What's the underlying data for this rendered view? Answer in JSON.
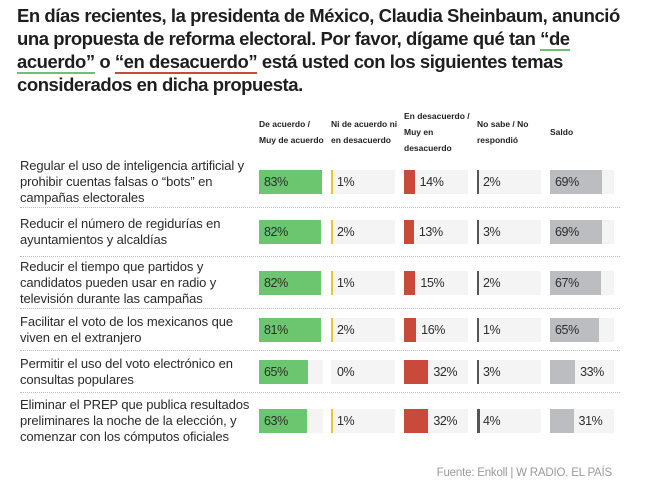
{
  "title": {
    "part1": "En días recientes, la presidenta de México, Claudia Sheinbaum, anunció una propuesta de reforma electoral. Por favor, dígame qué tan ",
    "agree_term": "“de acuerdo”",
    "connector": " o ",
    "disagree_term": "“en desacuerdo”",
    "part2": " está usted con los siguientes temas considerados en dicha propuesta."
  },
  "colors": {
    "agree": "#6cc56f",
    "neutral": "#e8c531",
    "disagree": "#c94a3a",
    "dont_know": "#555555",
    "balance": "#bbbdc0",
    "track": "#f4f4f4"
  },
  "footer": "Fuente: Enkoll | W RADIO. EL PAÍS",
  "chart_data": {
    "type": "table",
    "title": "En días recientes, la presidenta de México, Claudia Sheinbaum, anunció una propuesta de reforma electoral. Por favor, dígame qué tan “de acuerdo” o “en desacuerdo” está usted con los siguientes temas considerados en dicha propuesta.",
    "columns": [
      "De acuerdo / Muy de acuerdo",
      "Ni de acuerdo ni en desacuerdo",
      "En desacuerdo / Muy en desacuerdo",
      "No sabe / No respondió",
      "Saldo"
    ],
    "categories": [
      "Regular el uso de inteligencia artificial y prohibir cuentas falsas o “bots” en campañas electorales",
      "Reducir el número de regidurías en ayuntamientos y alcaldías",
      "Reducir el tiempo que partidos y candidatos pueden usar en radio y televisión durante las campañas",
      "Facilitar el voto de los mexicanos que viven en el extranjero",
      "Permitir el uso del voto electrónico en consultas populares",
      "Eliminar el PREP que publica resultados preliminares la noche de la elección, y comenzar con los cómputos oficiales"
    ],
    "series": [
      {
        "name": "De acuerdo / Muy de acuerdo",
        "values": [
          83,
          82,
          82,
          81,
          65,
          63
        ]
      },
      {
        "name": "Ni de acuerdo ni en desacuerdo",
        "values": [
          1,
          2,
          1,
          2,
          0,
          1
        ]
      },
      {
        "name": "En desacuerdo / Muy en desacuerdo",
        "values": [
          14,
          13,
          15,
          16,
          32,
          32
        ]
      },
      {
        "name": "No sabe / No respondió",
        "values": [
          2,
          3,
          2,
          1,
          3,
          4
        ]
      },
      {
        "name": "Saldo",
        "values": [
          69,
          69,
          67,
          65,
          33,
          31
        ]
      }
    ],
    "unit": "%",
    "source": "Fuente: Enkoll | W RADIO. EL PAÍS"
  }
}
